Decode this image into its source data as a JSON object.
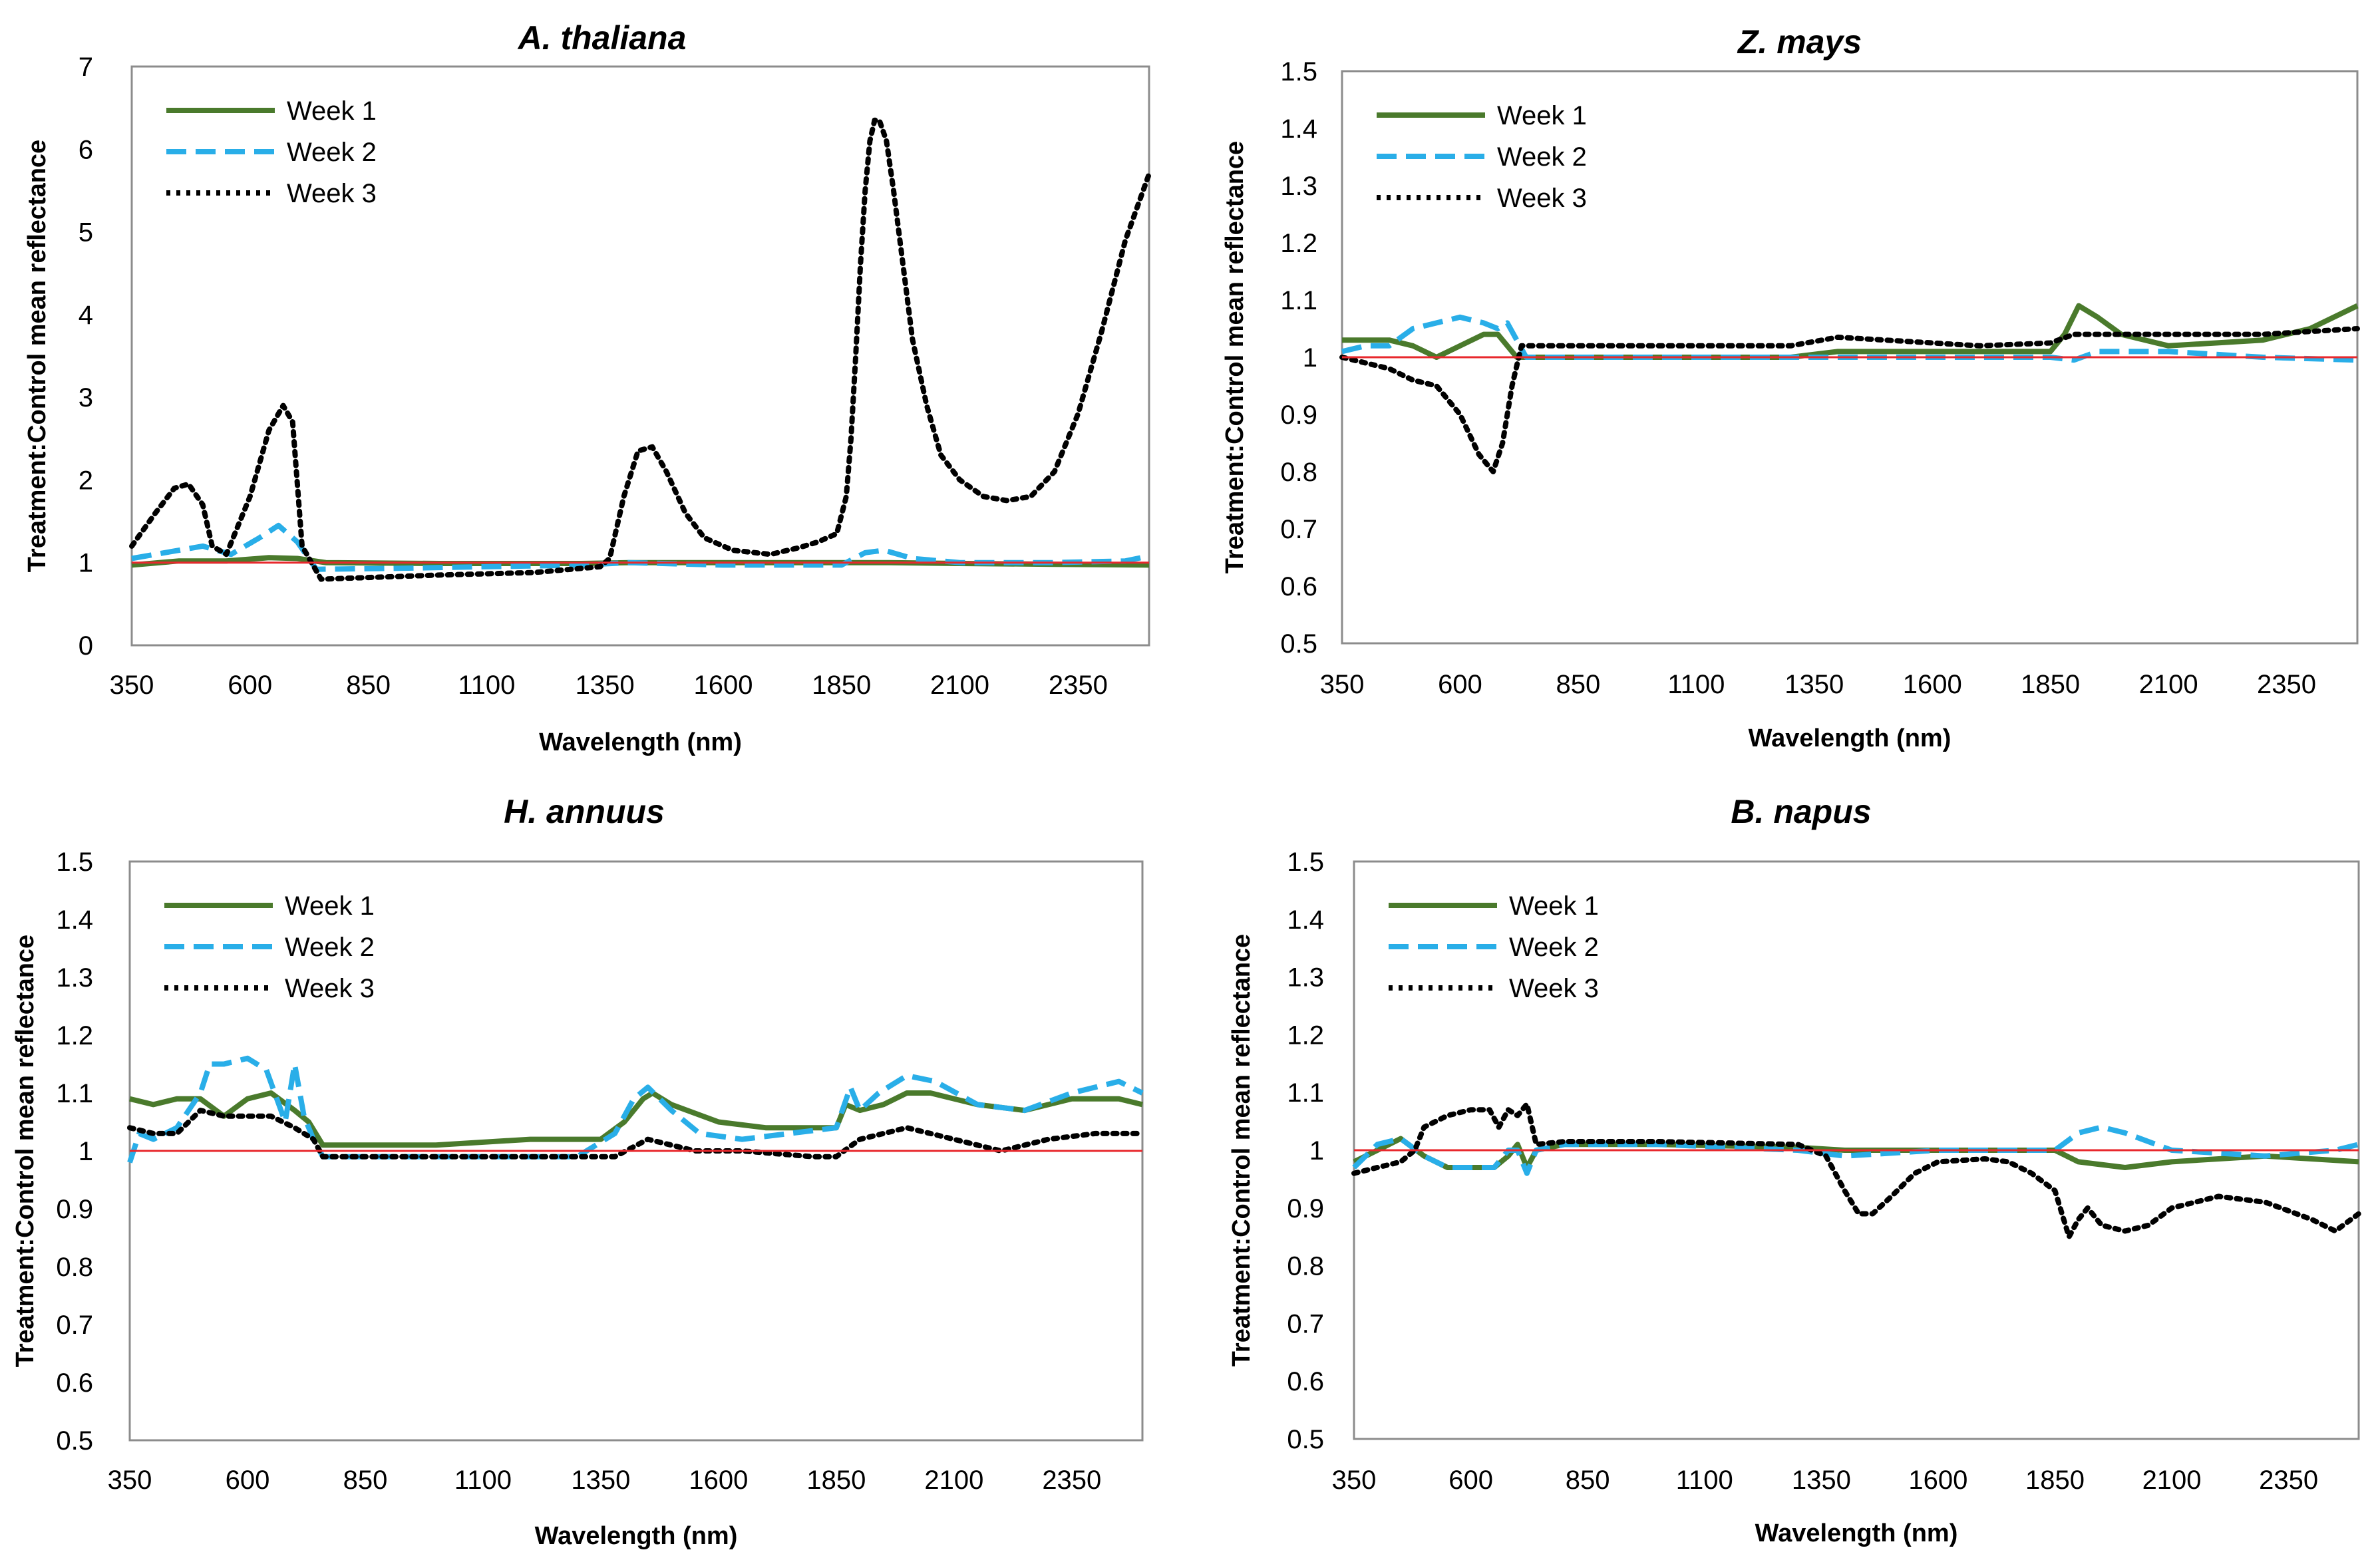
{
  "colors": {
    "week1": "#4a7a2c",
    "week2": "#29aee8",
    "week3": "#000000",
    "reference": "#e8282d",
    "frame": "#8c8c8c"
  },
  "chart_data": [
    {
      "type": "line",
      "title": "A. thaliana",
      "xlabel": "Wavelength (nm)",
      "ylabel": "Treatment:Control mean reflectance",
      "xlim": [
        350,
        2500
      ],
      "ylim": [
        0,
        7
      ],
      "xticks": [
        350,
        600,
        850,
        1100,
        1350,
        1600,
        1850,
        2100,
        2350
      ],
      "yticks": [
        0,
        1,
        2,
        3,
        4,
        5,
        6,
        7
      ],
      "ytick_labels": [
        "0",
        "1",
        "2",
        "3",
        "4",
        "5",
        "6",
        "7"
      ],
      "reference_line": 1,
      "legend_position": "top-left",
      "series": [
        {
          "name": "Week 1",
          "style": "solid",
          "x": [
            350,
            450,
            550,
            640,
            700,
            760,
            1000,
            1300,
            1400,
            1600,
            1850,
            1950,
            2100,
            2300,
            2500
          ],
          "y": [
            0.97,
            1.02,
            1.02,
            1.06,
            1.05,
            1.0,
            0.99,
            0.99,
            1.0,
            1.0,
            1.0,
            1.0,
            0.99,
            0.98,
            0.97
          ]
        },
        {
          "name": "Week 2",
          "style": "dashed",
          "x": [
            350,
            420,
            500,
            560,
            620,
            660,
            700,
            740,
            900,
            1100,
            1300,
            1400,
            1600,
            1850,
            1900,
            1940,
            2000,
            2100,
            2300,
            2450,
            2500
          ],
          "y": [
            1.05,
            1.12,
            1.2,
            1.1,
            1.3,
            1.45,
            1.25,
            0.92,
            0.93,
            0.95,
            0.97,
            1.0,
            0.97,
            0.97,
            1.12,
            1.15,
            1.05,
            1.0,
            1.0,
            1.02,
            1.08
          ]
        },
        {
          "name": "Week 3",
          "style": "dotted",
          "x": [
            350,
            400,
            440,
            470,
            500,
            520,
            550,
            600,
            640,
            670,
            690,
            710,
            750,
            850,
            1000,
            1200,
            1340,
            1360,
            1390,
            1420,
            1450,
            1480,
            1520,
            1560,
            1620,
            1700,
            1760,
            1800,
            1840,
            1860,
            1870,
            1880,
            1890,
            1900,
            1910,
            1920,
            1930,
            1945,
            1960,
            1980,
            2000,
            2030,
            2060,
            2100,
            2150,
            2200,
            2250,
            2300,
            2350,
            2400,
            2450,
            2500
          ],
          "y": [
            1.2,
            1.6,
            1.9,
            1.95,
            1.7,
            1.2,
            1.1,
            1.8,
            2.6,
            2.9,
            2.7,
            1.2,
            0.8,
            0.82,
            0.85,
            0.88,
            0.95,
            1.05,
            1.8,
            2.35,
            2.4,
            2.1,
            1.6,
            1.3,
            1.15,
            1.1,
            1.18,
            1.25,
            1.35,
            1.8,
            2.5,
            3.5,
            4.6,
            5.5,
            6.1,
            6.35,
            6.35,
            6.1,
            5.5,
            4.6,
            3.7,
            2.9,
            2.3,
            2.0,
            1.8,
            1.75,
            1.8,
            2.1,
            2.8,
            3.8,
            4.9,
            5.7
          ]
        }
      ]
    },
    {
      "type": "line",
      "title": "Z. mays",
      "xlabel": "Wavelength (nm)",
      "ylabel": "Treatment:Control mean reflectance",
      "xlim": [
        350,
        2500
      ],
      "ylim": [
        0.5,
        1.5
      ],
      "xticks": [
        350,
        600,
        850,
        1100,
        1350,
        1600,
        1850,
        2100,
        2350
      ],
      "yticks": [
        0.5,
        0.6,
        0.7,
        0.8,
        0.9,
        1,
        1.1,
        1.2,
        1.3,
        1.4,
        1.5
      ],
      "ytick_labels": [
        "0.5",
        "0.6",
        "0.7",
        "0.8",
        "0.9",
        "1",
        "1.1",
        "1.2",
        "1.3",
        "1.4",
        "1.5"
      ],
      "reference_line": 1,
      "legend_position": "top-left",
      "series": [
        {
          "name": "Week 1",
          "style": "solid",
          "x": [
            350,
            400,
            450,
            500,
            550,
            600,
            650,
            680,
            700,
            720,
            740,
            1000,
            1300,
            1400,
            1500,
            1850,
            1880,
            1910,
            1950,
            2000,
            2100,
            2300,
            2400,
            2500
          ],
          "y": [
            1.03,
            1.03,
            1.03,
            1.02,
            1.0,
            1.02,
            1.04,
            1.04,
            1.02,
            1.0,
            1.0,
            1.0,
            1.0,
            1.01,
            1.01,
            1.01,
            1.04,
            1.09,
            1.07,
            1.04,
            1.02,
            1.03,
            1.05,
            1.09
          ]
        },
        {
          "name": "Week 2",
          "style": "dashed",
          "x": [
            350,
            400,
            450,
            500,
            550,
            600,
            650,
            680,
            700,
            720,
            740,
            1000,
            1300,
            1400,
            1600,
            1850,
            1900,
            1950,
            2100,
            2300,
            2500
          ],
          "y": [
            1.01,
            1.02,
            1.02,
            1.05,
            1.06,
            1.07,
            1.06,
            1.05,
            1.06,
            1.03,
            1.0,
            1.0,
            1.0,
            1.0,
            1.0,
            1.0,
            0.995,
            1.01,
            1.01,
            1.0,
            0.995
          ]
        },
        {
          "name": "Week 3",
          "style": "dotted",
          "x": [
            350,
            400,
            450,
            500,
            550,
            600,
            640,
            670,
            690,
            710,
            730,
            760,
            1000,
            1300,
            1400,
            1500,
            1700,
            1850,
            1900,
            2000,
            2100,
            2300,
            2500
          ],
          "y": [
            1.0,
            0.99,
            0.98,
            0.96,
            0.95,
            0.9,
            0.83,
            0.8,
            0.85,
            0.95,
            1.02,
            1.02,
            1.02,
            1.02,
            1.035,
            1.03,
            1.02,
            1.025,
            1.04,
            1.04,
            1.04,
            1.04,
            1.05
          ]
        }
      ]
    },
    {
      "type": "line",
      "title": "H. annuus",
      "xlabel": "Wavelength (nm)",
      "ylabel": "Treatment:Control mean reflectance",
      "xlim": [
        350,
        2500
      ],
      "ylim": [
        0.5,
        1.5
      ],
      "xticks": [
        350,
        600,
        850,
        1100,
        1350,
        1600,
        1850,
        2100,
        2350
      ],
      "yticks": [
        0.5,
        0.6,
        0.7,
        0.8,
        0.9,
        1,
        1.1,
        1.2,
        1.3,
        1.4,
        1.5
      ],
      "ytick_labels": [
        "0.5",
        "0.6",
        "0.7",
        "0.8",
        "0.9",
        "1",
        "1.1",
        "1.2",
        "1.3",
        "1.4",
        "1.5"
      ],
      "reference_line": 1,
      "legend_position": "top-left",
      "series": [
        {
          "name": "Week 1",
          "style": "solid",
          "x": [
            350,
            400,
            450,
            500,
            550,
            600,
            650,
            700,
            730,
            760,
            800,
            1000,
            1200,
            1350,
            1400,
            1440,
            1460,
            1500,
            1600,
            1700,
            1850,
            1870,
            1900,
            1950,
            2000,
            2050,
            2150,
            2250,
            2350,
            2450,
            2500
          ],
          "y": [
            1.09,
            1.08,
            1.09,
            1.09,
            1.06,
            1.09,
            1.1,
            1.07,
            1.05,
            1.01,
            1.01,
            1.01,
            1.02,
            1.02,
            1.05,
            1.09,
            1.1,
            1.08,
            1.05,
            1.04,
            1.04,
            1.08,
            1.07,
            1.08,
            1.1,
            1.1,
            1.08,
            1.07,
            1.09,
            1.09,
            1.08
          ]
        },
        {
          "name": "Week 2",
          "style": "dashed",
          "x": [
            350,
            370,
            400,
            450,
            500,
            520,
            550,
            600,
            640,
            680,
            700,
            720,
            740,
            760,
            900,
            1100,
            1300,
            1380,
            1420,
            1450,
            1500,
            1560,
            1650,
            1750,
            1850,
            1880,
            1900,
            1940,
            2000,
            2060,
            2150,
            2250,
            2350,
            2450,
            2500
          ],
          "y": [
            0.98,
            1.03,
            1.02,
            1.04,
            1.1,
            1.15,
            1.15,
            1.16,
            1.14,
            1.05,
            1.15,
            1.06,
            1.02,
            0.99,
            0.99,
            0.99,
            0.99,
            1.03,
            1.09,
            1.11,
            1.07,
            1.03,
            1.02,
            1.03,
            1.04,
            1.11,
            1.07,
            1.1,
            1.13,
            1.12,
            1.08,
            1.07,
            1.1,
            1.12,
            1.1
          ]
        },
        {
          "name": "Week 3",
          "style": "dotted",
          "x": [
            350,
            400,
            450,
            500,
            550,
            600,
            650,
            700,
            740,
            760,
            900,
            1100,
            1300,
            1380,
            1450,
            1500,
            1550,
            1650,
            1800,
            1850,
            1900,
            1950,
            2000,
            2050,
            2100,
            2200,
            2300,
            2400,
            2500
          ],
          "y": [
            1.04,
            1.03,
            1.03,
            1.07,
            1.06,
            1.06,
            1.06,
            1.04,
            1.02,
            0.99,
            0.99,
            0.99,
            0.99,
            0.99,
            1.02,
            1.01,
            1.0,
            1.0,
            0.99,
            0.99,
            1.02,
            1.03,
            1.04,
            1.03,
            1.02,
            1.0,
            1.02,
            1.03,
            1.03
          ]
        }
      ]
    },
    {
      "type": "line",
      "title": "B. napus",
      "xlabel": "Wavelength (nm)",
      "ylabel": "Treatment:Control mean reflectance",
      "xlim": [
        350,
        2500
      ],
      "ylim": [
        0.5,
        1.5
      ],
      "xticks": [
        350,
        600,
        850,
        1100,
        1350,
        1600,
        1850,
        2100,
        2350
      ],
      "yticks": [
        0.5,
        0.6,
        0.7,
        0.8,
        0.9,
        1,
        1.1,
        1.2,
        1.3,
        1.4,
        1.5
      ],
      "ytick_labels": [
        "0.5",
        "0.6",
        "0.7",
        "0.8",
        "0.9",
        "1",
        "1.1",
        "1.2",
        "1.3",
        "1.4",
        "1.5"
      ],
      "reference_line": 1,
      "legend_position": "top-left",
      "series": [
        {
          "name": "Week 1",
          "style": "solid",
          "x": [
            350,
            400,
            450,
            500,
            550,
            600,
            650,
            680,
            700,
            720,
            740,
            800,
            1000,
            1300,
            1400,
            1600,
            1800,
            1850,
            1900,
            2000,
            2100,
            2300,
            2500
          ],
          "y": [
            0.98,
            1.0,
            1.02,
            0.99,
            0.97,
            0.97,
            0.97,
            0.99,
            1.01,
            0.97,
            1.0,
            1.01,
            1.01,
            1.005,
            1.0,
            1.0,
            1.0,
            1.0,
            0.98,
            0.97,
            0.98,
            0.99,
            0.98
          ]
        },
        {
          "name": "Week 2",
          "style": "dashed",
          "x": [
            350,
            400,
            450,
            500,
            550,
            600,
            650,
            680,
            700,
            720,
            740,
            800,
            1000,
            1300,
            1400,
            1600,
            1850,
            1900,
            1950,
            2000,
            2100,
            2300,
            2450,
            2500
          ],
          "y": [
            0.97,
            1.01,
            1.02,
            0.99,
            0.97,
            0.97,
            0.97,
            1.0,
            1.0,
            0.96,
            1.0,
            1.01,
            1.01,
            1.0,
            0.99,
            1.0,
            1.0,
            1.03,
            1.04,
            1.03,
            1.0,
            0.99,
            1.0,
            1.01
          ]
        },
        {
          "name": "Week 3",
          "style": "dotted",
          "x": [
            350,
            400,
            450,
            480,
            500,
            550,
            600,
            640,
            660,
            680,
            700,
            720,
            740,
            800,
            1000,
            1300,
            1360,
            1400,
            1430,
            1460,
            1500,
            1550,
            1600,
            1700,
            1750,
            1800,
            1850,
            1880,
            1900,
            1920,
            1950,
            2000,
            2050,
            2100,
            2200,
            2300,
            2400,
            2450,
            2500
          ],
          "y": [
            0.96,
            0.97,
            0.98,
            1.0,
            1.04,
            1.06,
            1.07,
            1.07,
            1.04,
            1.07,
            1.06,
            1.08,
            1.01,
            1.015,
            1.015,
            1.01,
            0.99,
            0.93,
            0.89,
            0.89,
            0.92,
            0.96,
            0.98,
            0.985,
            0.98,
            0.96,
            0.93,
            0.85,
            0.88,
            0.9,
            0.87,
            0.86,
            0.87,
            0.9,
            0.92,
            0.91,
            0.88,
            0.86,
            0.89
          ]
        }
      ]
    }
  ]
}
